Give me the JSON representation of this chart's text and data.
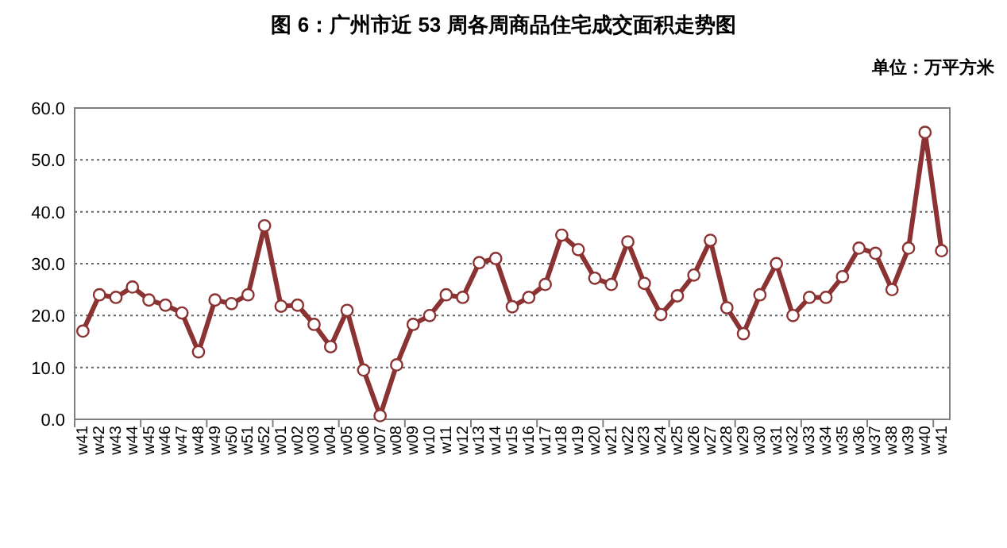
{
  "chart_data": {
    "type": "line",
    "title": "图 6：广州市近 53 周各周商品住宅成交面积走势图",
    "subtitle": "单位：万平方米",
    "categories": [
      "w41",
      "w42",
      "w43",
      "w44",
      "w45",
      "w46",
      "w47",
      "w48",
      "w49",
      "w50",
      "w51",
      "w52",
      "w01",
      "w02",
      "w03",
      "w04",
      "w05",
      "w06",
      "w07",
      "w08",
      "w09",
      "w10",
      "w11",
      "w12",
      "w13",
      "w14",
      "w15",
      "w16",
      "w17",
      "w18",
      "w19",
      "w20",
      "w21",
      "w22",
      "w23",
      "w24",
      "w25",
      "w26",
      "w27",
      "w28",
      "w29",
      "w30",
      "w31",
      "w32",
      "w33",
      "w34",
      "w35",
      "w36",
      "w37",
      "w38",
      "w39",
      "w40",
      "w41"
    ],
    "series": [
      {
        "color": "#8b3232",
        "values": [
          17,
          24,
          23.5,
          25.5,
          23,
          22,
          20.5,
          13,
          23,
          22.3,
          24,
          37.3,
          21.8,
          22,
          18.3,
          14,
          21,
          9.5,
          0.7,
          10.5,
          18.3,
          20,
          24,
          23.5,
          30.2,
          31,
          21.7,
          23.5,
          26,
          35.5,
          32.7,
          27.2,
          26,
          34.2,
          26.2,
          20.2,
          23.8,
          27.8,
          34.5,
          21.5,
          16.5,
          24,
          30,
          20,
          23.5,
          23.5,
          27.5,
          33,
          32,
          25,
          33,
          55.3,
          32.5
        ]
      }
    ],
    "ylim": [
      0,
      60
    ],
    "yticks": [
      {
        "value": 0,
        "label": "0.0"
      },
      {
        "value": 10,
        "label": "10.0"
      },
      {
        "value": 20,
        "label": "20.0"
      },
      {
        "value": 30,
        "label": "30.0"
      },
      {
        "value": 40,
        "label": "40.0"
      },
      {
        "value": 50,
        "label": "50.0"
      },
      {
        "value": 60,
        "label": "60.0"
      }
    ],
    "grid": "y",
    "marker": "circle",
    "line_style": "solid"
  }
}
